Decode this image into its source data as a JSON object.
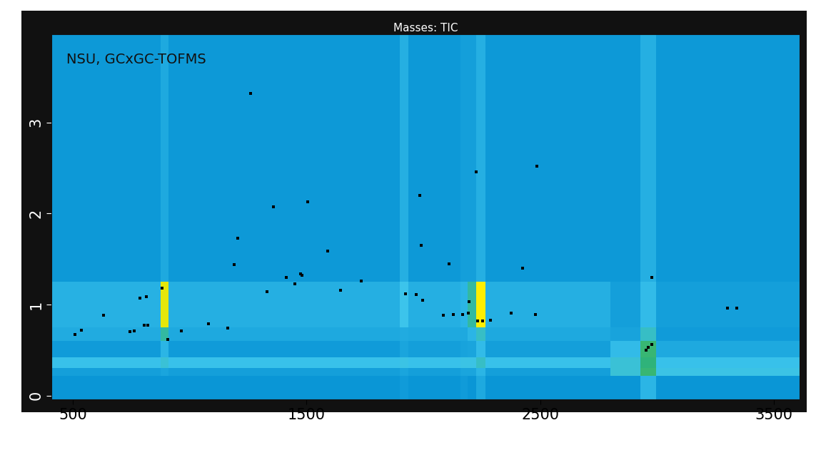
{
  "chart_data": {
    "type": "heatmap",
    "title": "Masses: TIC",
    "annotations": [
      "NSU, GCxGC-TOFMS"
    ],
    "x_edges": [
      410,
      875,
      910,
      1900,
      1935,
      2160,
      2190,
      2225,
      2265,
      2800,
      2930,
      2995,
      3610
    ],
    "y_edges": [
      -0.04,
      0.22,
      0.3,
      0.42,
      0.6,
      0.75,
      1.25,
      3.97
    ],
    "cells": [
      [
        30,
        30,
        30,
        32,
        30,
        32,
        30,
        36,
        30,
        30,
        40,
        30
      ],
      [
        33,
        35,
        33,
        35,
        33,
        35,
        35,
        40,
        33,
        48,
        62,
        46
      ],
      [
        44,
        48,
        44,
        46,
        44,
        46,
        46,
        50,
        44,
        48,
        60,
        44
      ],
      [
        32,
        40,
        32,
        35,
        33,
        34,
        35,
        42,
        33,
        42,
        62,
        36
      ],
      [
        37,
        55,
        36,
        37,
        36,
        36,
        40,
        50,
        36,
        34,
        50,
        32
      ],
      [
        39,
        95,
        38,
        45,
        38,
        40,
        55,
        100,
        38,
        33,
        42,
        33
      ],
      [
        31,
        36,
        31,
        38,
        31,
        33,
        33,
        38,
        31,
        31,
        38,
        31
      ]
    ],
    "value_range": [
      0,
      100
    ],
    "xlim": [
      410,
      3610
    ],
    "ylim": [
      -0.04,
      3.97
    ],
    "xticks": [
      500,
      1500,
      2500,
      3500
    ],
    "yticks": [
      0,
      1,
      2,
      3
    ],
    "grid": false,
    "peaks": {
      "type": "scatter",
      "color": "#000000",
      "marker": "square",
      "x": [
        509,
        537,
        631,
        744,
        762,
        787,
        805,
        814,
        820,
        881,
        905,
        965,
        1080,
        1163,
        1190,
        1205,
        1260,
        1330,
        1360,
        1415,
        1450,
        1475,
        1482,
        1505,
        1590,
        1645,
        1735,
        1925,
        1970,
        1985,
        1992,
        1996,
        2085,
        2110,
        2128,
        2168,
        2192,
        2195,
        2226,
        2232,
        2253,
        2287,
        2375,
        2424,
        2479,
        2485,
        2954,
        2963,
        2976,
        2978,
        3302,
        3341
      ],
      "y": [
        0.67,
        0.72,
        0.88,
        0.7,
        0.71,
        1.07,
        0.77,
        1.09,
        0.77,
        1.18,
        0.62,
        0.71,
        0.79,
        0.74,
        1.44,
        1.73,
        3.32,
        1.14,
        2.07,
        1.3,
        1.23,
        1.34,
        1.32,
        2.13,
        1.59,
        1.16,
        1.26,
        1.12,
        1.11,
        2.2,
        1.65,
        1.05,
        0.88,
        1.45,
        0.89,
        0.89,
        0.91,
        1.03,
        2.46,
        0.82,
        0.82,
        0.83,
        0.91,
        1.4,
        0.89,
        2.52,
        0.5,
        0.53,
        0.56,
        1.3,
        0.96,
        0.96
      ]
    }
  }
}
